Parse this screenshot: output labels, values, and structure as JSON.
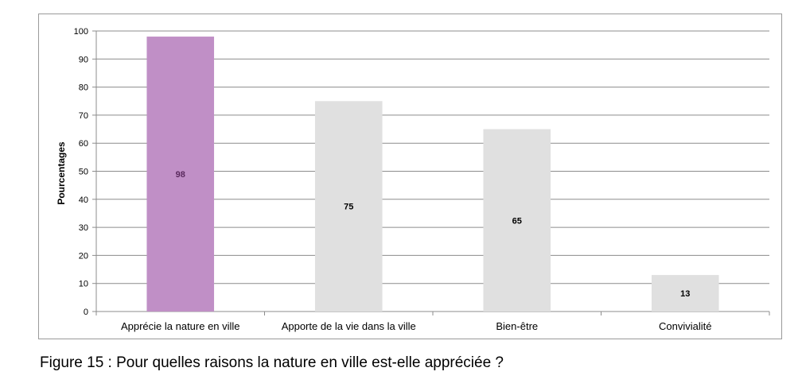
{
  "caption": "Figure 15 : Pour quelles raisons la nature en ville est-elle appréciée ?",
  "chart_data": {
    "type": "bar",
    "title": "",
    "xlabel": "",
    "ylabel": "Pourcentages",
    "ylim": [
      0,
      100
    ],
    "yticks": [
      0,
      10,
      20,
      30,
      40,
      50,
      60,
      70,
      80,
      90,
      100
    ],
    "grid": true,
    "legend": "none",
    "categories": [
      "Apprécie la nature en ville",
      "Apporte de la vie dans la ville",
      "Bien-être",
      "Convivialité"
    ],
    "values": [
      98,
      75,
      65,
      13
    ],
    "data_labels": [
      "98",
      "75",
      "65",
      "13"
    ],
    "bar_colors": [
      "#c08fc6",
      "#e0e0e0",
      "#e0e0e0",
      "#e0e0e0"
    ],
    "label_colors": [
      "#5a2a5e",
      "#000000",
      "#000000",
      "#000000"
    ],
    "gridline_color": "#8c8c8c"
  }
}
